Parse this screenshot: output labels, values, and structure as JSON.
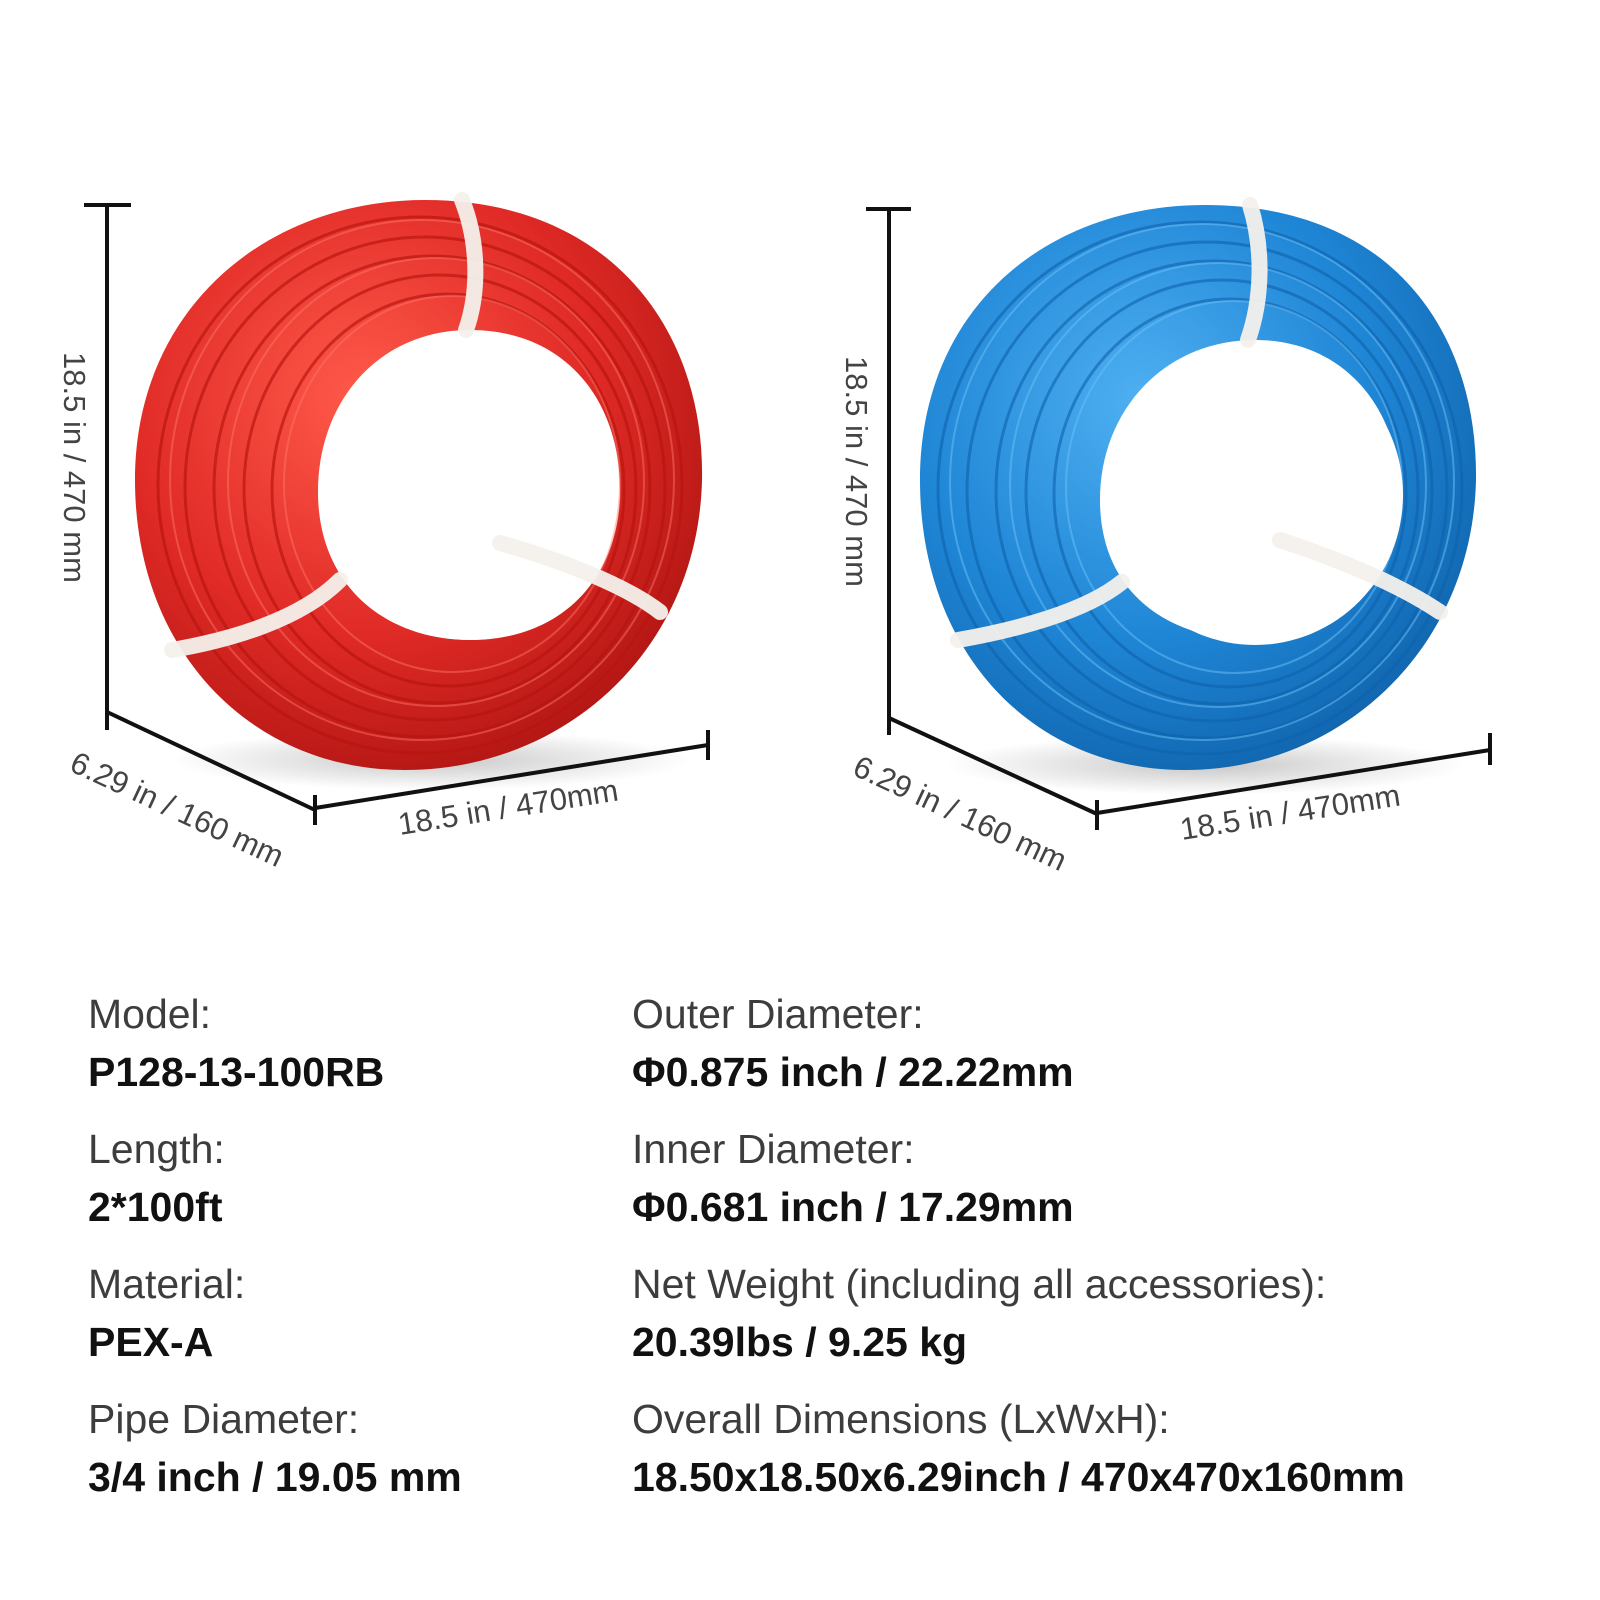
{
  "product": {
    "coil_colors": {
      "red": "#e02a26",
      "blue": "#1f86d6",
      "band": "#f4f1ec"
    }
  },
  "dimensions": {
    "red_coil": {
      "height": "18.5 in / 470 mm",
      "depth": "6.29 in / 160 mm",
      "width": "18.5 in / 470mm"
    },
    "blue_coil": {
      "height": "18.5 in / 470 mm",
      "depth": "6.29 in / 160 mm",
      "width": "18.5 in / 470mm"
    }
  },
  "specs": {
    "left": [
      {
        "label": "Model:",
        "value": "P128-13-100RB"
      },
      {
        "label": "Length:",
        "value": "2*100ft"
      },
      {
        "label": "Material:",
        "value": "PEX-A"
      },
      {
        "label": "Pipe Diameter:",
        "value": "3/4 inch / 19.05 mm"
      }
    ],
    "right": [
      {
        "label": "Outer Diameter:",
        "value": "Φ0.875 inch / 22.22mm"
      },
      {
        "label": "Inner Diameter:",
        "value": "Φ0.681 inch / 17.29mm"
      },
      {
        "label": "Net Weight (including all accessories):",
        "value": "20.39lbs / 9.25  kg"
      },
      {
        "label": "Overall Dimensions (LxWxH):",
        "value": "18.50x18.50x6.29inch / 470x470x160mm"
      }
    ]
  }
}
